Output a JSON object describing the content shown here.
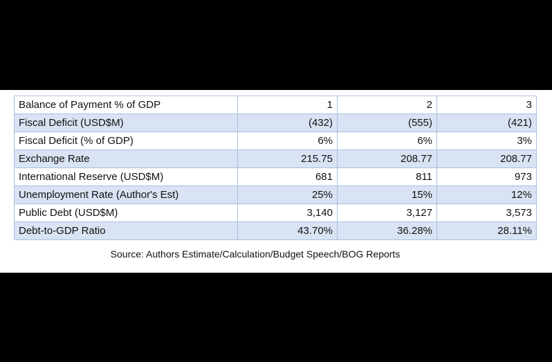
{
  "table": {
    "rows": [
      {
        "label": "Balance of Payment % of GDP",
        "values": [
          "1",
          "2",
          "3"
        ]
      },
      {
        "label": "Fiscal Deficit (USD$M)",
        "values": [
          "(432)",
          "(555)",
          "(421)"
        ]
      },
      {
        "label": "Fiscal Deficit (% of GDP)",
        "values": [
          "6%",
          "6%",
          "3%"
        ]
      },
      {
        "label": "Exchange Rate",
        "values": [
          "215.75",
          "208.77",
          "208.77"
        ]
      },
      {
        "label": "International Reserve (USD$M)",
        "values": [
          "681",
          "811",
          "973"
        ]
      },
      {
        "label": "Unemployment Rate (Author's Est)",
        "values": [
          "25%",
          "15%",
          "12%"
        ]
      },
      {
        "label": "Public Debt (USD$M)",
        "values": [
          "3,140",
          "3,127",
          "3,573"
        ]
      },
      {
        "label": "Debt-to-GDP Ratio",
        "values": [
          "43.70%",
          "36.28%",
          "28.11%"
        ]
      }
    ],
    "shaded_color": "#d9e3f3",
    "border_color": "#a9bfe0"
  },
  "source": "Source: Authors Estimate/Calculation/Budget Speech/BOG Reports"
}
